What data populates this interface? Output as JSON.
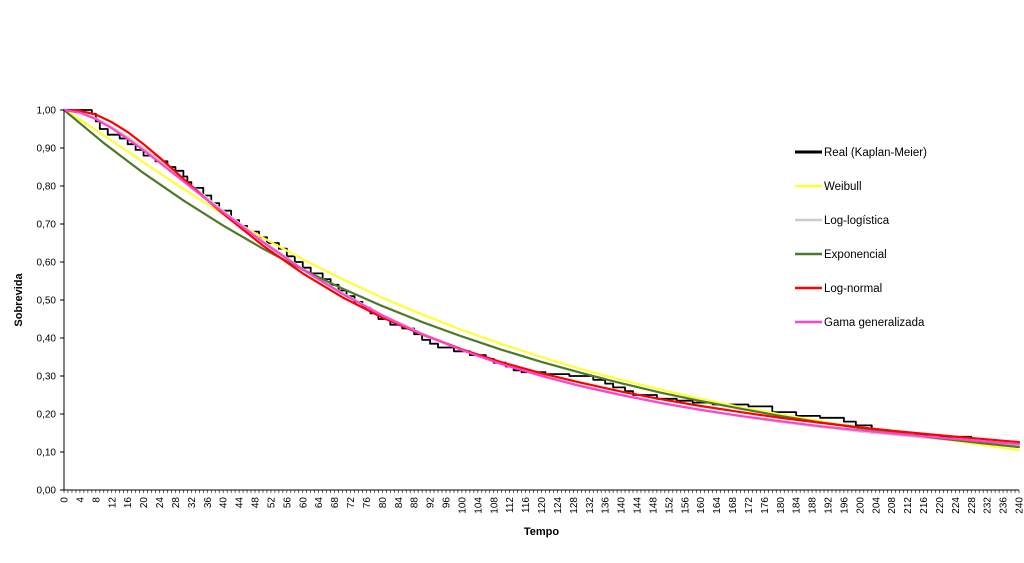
{
  "chart_data": {
    "type": "line",
    "title": "",
    "xlabel": "Tempo",
    "ylabel": "Sobrevida",
    "xlim": [
      0,
      240
    ],
    "ylim": [
      0,
      1
    ],
    "x_tick_step": 4,
    "y_tick_step": 0.1,
    "y_tick_decimals": 2,
    "decimal_separator": ",",
    "grid": false,
    "legend_position": "right",
    "series": [
      {
        "name": "Real (Kaplan-Meier)",
        "color": "#000000",
        "step": true,
        "points": [
          [
            0,
            1.0
          ],
          [
            7,
            0.99
          ],
          [
            8,
            0.97
          ],
          [
            9,
            0.95
          ],
          [
            11,
            0.935
          ],
          [
            14,
            0.925
          ],
          [
            16,
            0.91
          ],
          [
            18,
            0.895
          ],
          [
            20,
            0.88
          ],
          [
            23,
            0.865
          ],
          [
            26,
            0.85
          ],
          [
            28,
            0.84
          ],
          [
            30,
            0.825
          ],
          [
            31,
            0.81
          ],
          [
            32,
            0.795
          ],
          [
            35,
            0.775
          ],
          [
            37,
            0.755
          ],
          [
            39,
            0.735
          ],
          [
            42,
            0.71
          ],
          [
            44,
            0.695
          ],
          [
            46,
            0.68
          ],
          [
            49,
            0.665
          ],
          [
            51,
            0.65
          ],
          [
            54,
            0.635
          ],
          [
            56,
            0.615
          ],
          [
            58,
            0.6
          ],
          [
            60,
            0.585
          ],
          [
            62,
            0.57
          ],
          [
            65,
            0.555
          ],
          [
            67,
            0.54
          ],
          [
            69,
            0.525
          ],
          [
            71,
            0.51
          ],
          [
            73,
            0.495
          ],
          [
            75,
            0.48
          ],
          [
            77,
            0.465
          ],
          [
            79,
            0.45
          ],
          [
            82,
            0.435
          ],
          [
            85,
            0.425
          ],
          [
            88,
            0.41
          ],
          [
            90,
            0.395
          ],
          [
            92,
            0.385
          ],
          [
            94,
            0.375
          ],
          [
            98,
            0.365
          ],
          [
            102,
            0.355
          ],
          [
            106,
            0.345
          ],
          [
            108,
            0.335
          ],
          [
            111,
            0.325
          ],
          [
            113,
            0.315
          ],
          [
            115,
            0.31
          ],
          [
            121,
            0.305
          ],
          [
            127,
            0.3
          ],
          [
            133,
            0.29
          ],
          [
            136,
            0.28
          ],
          [
            138,
            0.27
          ],
          [
            141,
            0.26
          ],
          [
            143,
            0.25
          ],
          [
            149,
            0.24
          ],
          [
            154,
            0.235
          ],
          [
            158,
            0.23
          ],
          [
            163,
            0.225
          ],
          [
            172,
            0.22
          ],
          [
            178,
            0.205
          ],
          [
            184,
            0.195
          ],
          [
            190,
            0.19
          ],
          [
            196,
            0.18
          ],
          [
            199,
            0.17
          ],
          [
            203,
            0.15
          ],
          [
            210,
            0.145
          ],
          [
            220,
            0.14
          ],
          [
            228,
            0.14
          ]
        ]
      },
      {
        "name": "Weibull",
        "color": "#ffff33",
        "points": [
          [
            0,
            1.0
          ],
          [
            4,
            0.975
          ],
          [
            8,
            0.947
          ],
          [
            12,
            0.919
          ],
          [
            16,
            0.891
          ],
          [
            20,
            0.862
          ],
          [
            24,
            0.834
          ],
          [
            28,
            0.806
          ],
          [
            32,
            0.779
          ],
          [
            36,
            0.752
          ],
          [
            40,
            0.726
          ],
          [
            50,
            0.664
          ],
          [
            60,
            0.607
          ],
          [
            70,
            0.555
          ],
          [
            80,
            0.506
          ],
          [
            90,
            0.462
          ],
          [
            100,
            0.421
          ],
          [
            110,
            0.384
          ],
          [
            120,
            0.35
          ],
          [
            130,
            0.318
          ],
          [
            140,
            0.29
          ],
          [
            150,
            0.264
          ],
          [
            160,
            0.24
          ],
          [
            170,
            0.218
          ],
          [
            180,
            0.199
          ],
          [
            190,
            0.181
          ],
          [
            200,
            0.164
          ],
          [
            210,
            0.149
          ],
          [
            220,
            0.135
          ],
          [
            230,
            0.12
          ],
          [
            240,
            0.105
          ]
        ]
      },
      {
        "name": "Log-logística",
        "color": "#cccccc",
        "points": [
          [
            0,
            1.0
          ],
          [
            4,
            0.995
          ],
          [
            8,
            0.978
          ],
          [
            12,
            0.955
          ],
          [
            16,
            0.929
          ],
          [
            20,
            0.9
          ],
          [
            24,
            0.868
          ],
          [
            28,
            0.835
          ],
          [
            32,
            0.801
          ],
          [
            36,
            0.768
          ],
          [
            40,
            0.735
          ],
          [
            50,
            0.655
          ],
          [
            60,
            0.582
          ],
          [
            70,
            0.518
          ],
          [
            80,
            0.461
          ],
          [
            90,
            0.412
          ],
          [
            100,
            0.37
          ],
          [
            110,
            0.333
          ],
          [
            120,
            0.301
          ],
          [
            130,
            0.274
          ],
          [
            140,
            0.25
          ],
          [
            150,
            0.229
          ],
          [
            160,
            0.21
          ],
          [
            170,
            0.194
          ],
          [
            180,
            0.179
          ],
          [
            190,
            0.166
          ],
          [
            200,
            0.154
          ],
          [
            210,
            0.144
          ],
          [
            220,
            0.134
          ],
          [
            230,
            0.126
          ],
          [
            240,
            0.118
          ]
        ]
      },
      {
        "name": "Exponencial",
        "color": "#4d7a2a",
        "points": [
          [
            0,
            1.0
          ],
          [
            10,
            0.913
          ],
          [
            20,
            0.834
          ],
          [
            30,
            0.762
          ],
          [
            40,
            0.696
          ],
          [
            50,
            0.635
          ],
          [
            60,
            0.58
          ],
          [
            70,
            0.53
          ],
          [
            80,
            0.484
          ],
          [
            90,
            0.442
          ],
          [
            100,
            0.404
          ],
          [
            110,
            0.369
          ],
          [
            120,
            0.337
          ],
          [
            130,
            0.308
          ],
          [
            140,
            0.281
          ],
          [
            150,
            0.256
          ],
          [
            160,
            0.234
          ],
          [
            170,
            0.214
          ],
          [
            180,
            0.195
          ],
          [
            190,
            0.178
          ],
          [
            200,
            0.163
          ],
          [
            210,
            0.149
          ],
          [
            220,
            0.136
          ],
          [
            230,
            0.124
          ],
          [
            240,
            0.113
          ]
        ]
      },
      {
        "name": "Log-normal",
        "color": "#ff0000",
        "points": [
          [
            0,
            1.0
          ],
          [
            4,
            0.998
          ],
          [
            8,
            0.988
          ],
          [
            12,
            0.968
          ],
          [
            16,
            0.942
          ],
          [
            20,
            0.91
          ],
          [
            24,
            0.875
          ],
          [
            28,
            0.838
          ],
          [
            32,
            0.8
          ],
          [
            36,
            0.763
          ],
          [
            40,
            0.727
          ],
          [
            50,
            0.643
          ],
          [
            60,
            0.57
          ],
          [
            70,
            0.507
          ],
          [
            80,
            0.454
          ],
          [
            90,
            0.409
          ],
          [
            100,
            0.37
          ],
          [
            110,
            0.336
          ],
          [
            120,
            0.307
          ],
          [
            130,
            0.282
          ],
          [
            140,
            0.259
          ],
          [
            150,
            0.239
          ],
          [
            160,
            0.221
          ],
          [
            170,
            0.205
          ],
          [
            180,
            0.19
          ],
          [
            190,
            0.177
          ],
          [
            200,
            0.165
          ],
          [
            210,
            0.154
          ],
          [
            220,
            0.144
          ],
          [
            230,
            0.135
          ],
          [
            240,
            0.126
          ]
        ]
      },
      {
        "name": "Gama generalizada",
        "color": "#ff44cc",
        "points": [
          [
            0,
            1.0
          ],
          [
            4,
            0.993
          ],
          [
            8,
            0.976
          ],
          [
            12,
            0.952
          ],
          [
            16,
            0.924
          ],
          [
            20,
            0.894
          ],
          [
            24,
            0.862
          ],
          [
            28,
            0.829
          ],
          [
            32,
            0.796
          ],
          [
            36,
            0.763
          ],
          [
            40,
            0.731
          ],
          [
            50,
            0.652
          ],
          [
            60,
            0.58
          ],
          [
            70,
            0.516
          ],
          [
            80,
            0.459
          ],
          [
            90,
            0.41
          ],
          [
            100,
            0.368
          ],
          [
            110,
            0.331
          ],
          [
            120,
            0.3
          ],
          [
            130,
            0.273
          ],
          [
            140,
            0.25
          ],
          [
            150,
            0.229
          ],
          [
            160,
            0.211
          ],
          [
            170,
            0.195
          ],
          [
            180,
            0.181
          ],
          [
            190,
            0.168
          ],
          [
            200,
            0.157
          ],
          [
            210,
            0.147
          ],
          [
            220,
            0.138
          ],
          [
            230,
            0.129
          ],
          [
            240,
            0.121
          ]
        ]
      }
    ]
  }
}
